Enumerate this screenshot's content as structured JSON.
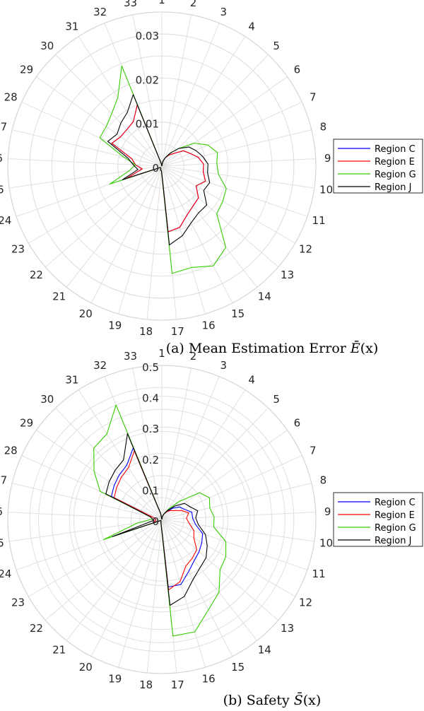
{
  "chart_data": [
    {
      "type": "polar_line",
      "caption": "(a) Mean Estimation Error Ē(x)",
      "caption_prefix": "(a) Mean Estimation Error ",
      "caption_symbol": "Ē",
      "caption_arg": "(x)",
      "theta_labels": [
        "1",
        "2",
        "3",
        "4",
        "5",
        "6",
        "7",
        "8",
        "9",
        "10",
        "11",
        "12",
        "13",
        "14",
        "15",
        "16",
        "17",
        "18",
        "19",
        "20",
        "21",
        "22",
        "23",
        "24",
        "25",
        "26",
        "27",
        "28",
        "29",
        "30",
        "31",
        "32",
        "33"
      ],
      "r_ticks": [
        0,
        0.01,
        0.02,
        0.03
      ],
      "r_tick_labels": [
        "0",
        "0.01",
        "0.02",
        "0.03"
      ],
      "rlim": [
        0,
        0.035
      ],
      "grid": true,
      "legend_position": "right",
      "series": [
        {
          "name": "Region C",
          "color": "#0000ff",
          "values": [
            0,
            0.001,
            0.002,
            0.003,
            0.004,
            0.006,
            0.007,
            0.0085,
            0.0095,
            0.0095,
            0.0105,
            0.009,
            0.011,
            0.0115,
            0.0125,
            0.0145,
            0.015,
            0.001,
            0.001,
            0.0005,
            0.0005,
            0.0005,
            0.001,
            0.0085,
            0.0045,
            0.006,
            0.007,
            0.0125,
            0.0115,
            0.0115,
            0.012,
            0.015,
            0.0005
          ]
        },
        {
          "name": "Region E",
          "color": "#ff0000",
          "values": [
            0,
            0.001,
            0.002,
            0.003,
            0.004,
            0.006,
            0.007,
            0.0085,
            0.0095,
            0.0095,
            0.0105,
            0.009,
            0.011,
            0.0115,
            0.0125,
            0.0145,
            0.015,
            0.001,
            0.001,
            0.0005,
            0.0005,
            0.0005,
            0.001,
            0.0085,
            0.0045,
            0.006,
            0.007,
            0.0125,
            0.0115,
            0.0115,
            0.012,
            0.015,
            0.0005
          ]
        },
        {
          "name": "Region G",
          "color": "#33cc00",
          "values": [
            0,
            0.001,
            0.002,
            0.0035,
            0.0055,
            0.009,
            0.0115,
            0.013,
            0.0125,
            0.013,
            0.0155,
            0.016,
            0.0165,
            0.0235,
            0.0255,
            0.024,
            0.0245,
            0.001,
            0.001,
            0.0005,
            0.0005,
            0.0005,
            0.001,
            0.0125,
            0.0075,
            0.006,
            0.009,
            0.0155,
            0.0155,
            0.0165,
            0.0185,
            0.0245,
            0.0005
          ]
        },
        {
          "name": "Region J",
          "color": "#000000",
          "values": [
            0,
            0.001,
            0.002,
            0.0035,
            0.0055,
            0.0075,
            0.0085,
            0.0095,
            0.0105,
            0.0105,
            0.0115,
            0.011,
            0.0135,
            0.0135,
            0.0145,
            0.0165,
            0.018,
            0.001,
            0.001,
            0.0005,
            0.0005,
            0.0005,
            0.001,
            0.0095,
            0.0055,
            0.0065,
            0.008,
            0.0135,
            0.0125,
            0.0135,
            0.0145,
            0.0175,
            0.0005
          ]
        }
      ]
    },
    {
      "type": "polar_line",
      "caption": "(b) Safety S̄(x)",
      "caption_prefix": "(b) Safety ",
      "caption_symbol": "S̄",
      "caption_arg": "(x)",
      "theta_labels": [
        "1",
        "2",
        "3",
        "4",
        "5",
        "6",
        "7",
        "8",
        "9",
        "10",
        "11",
        "12",
        "13",
        "14",
        "15",
        "16",
        "17",
        "18",
        "19",
        "20",
        "21",
        "22",
        "23",
        "24",
        "25",
        "26",
        "27",
        "28",
        "29",
        "30",
        "31",
        "32",
        "33"
      ],
      "r_ticks": [
        0,
        0.1,
        0.2,
        0.3,
        0.4,
        0.5
      ],
      "r_tick_labels": [
        "0",
        "0.1",
        "0.2",
        "0.3",
        "0.4",
        "0.5"
      ],
      "rlim": [
        0,
        0.5
      ],
      "grid": true,
      "legend_position": "right",
      "series": [
        {
          "name": "Region C",
          "color": "#0000ff",
          "values": [
            0,
            0.01,
            0.02,
            0.03,
            0.05,
            0.07,
            0.08,
            0.1,
            0.1,
            0.11,
            0.14,
            0.15,
            0.16,
            0.17,
            0.19,
            0.22,
            0.22,
            0.02,
            0.01,
            0.005,
            0.005,
            0.005,
            0.01,
            0.03,
            0.02,
            0.02,
            0.03,
            0.18,
            0.19,
            0.2,
            0.21,
            0.25,
            0.02
          ]
        },
        {
          "name": "Region E",
          "color": "#ff0000",
          "values": [
            0,
            0.01,
            0.02,
            0.03,
            0.04,
            0.05,
            0.07,
            0.09,
            0.08,
            0.09,
            0.11,
            0.12,
            0.15,
            0.16,
            0.17,
            0.21,
            0.23,
            0.02,
            0.01,
            0.005,
            0.005,
            0.005,
            0.01,
            0.03,
            0.02,
            0.02,
            0.03,
            0.17,
            0.18,
            0.19,
            0.2,
            0.24,
            0.02
          ]
        },
        {
          "name": "Region G",
          "color": "#33cc00",
          "values": [
            0,
            0.01,
            0.02,
            0.04,
            0.08,
            0.15,
            0.17,
            0.16,
            0.17,
            0.17,
            0.22,
            0.24,
            0.25,
            0.3,
            0.33,
            0.38,
            0.38,
            0.02,
            0.01,
            0.005,
            0.005,
            0.005,
            0.01,
            0.2,
            0.08,
            0.03,
            0.04,
            0.22,
            0.27,
            0.32,
            0.33,
            0.4,
            0.02
          ]
        },
        {
          "name": "Region J",
          "color": "#000000",
          "values": [
            0,
            0.01,
            0.02,
            0.035,
            0.06,
            0.09,
            0.1,
            0.12,
            0.11,
            0.12,
            0.15,
            0.17,
            0.19,
            0.2,
            0.22,
            0.26,
            0.28,
            0.02,
            0.01,
            0.005,
            0.005,
            0.005,
            0.01,
            0.17,
            0.03,
            0.03,
            0.04,
            0.2,
            0.21,
            0.22,
            0.23,
            0.3,
            0.02
          ]
        }
      ]
    }
  ]
}
